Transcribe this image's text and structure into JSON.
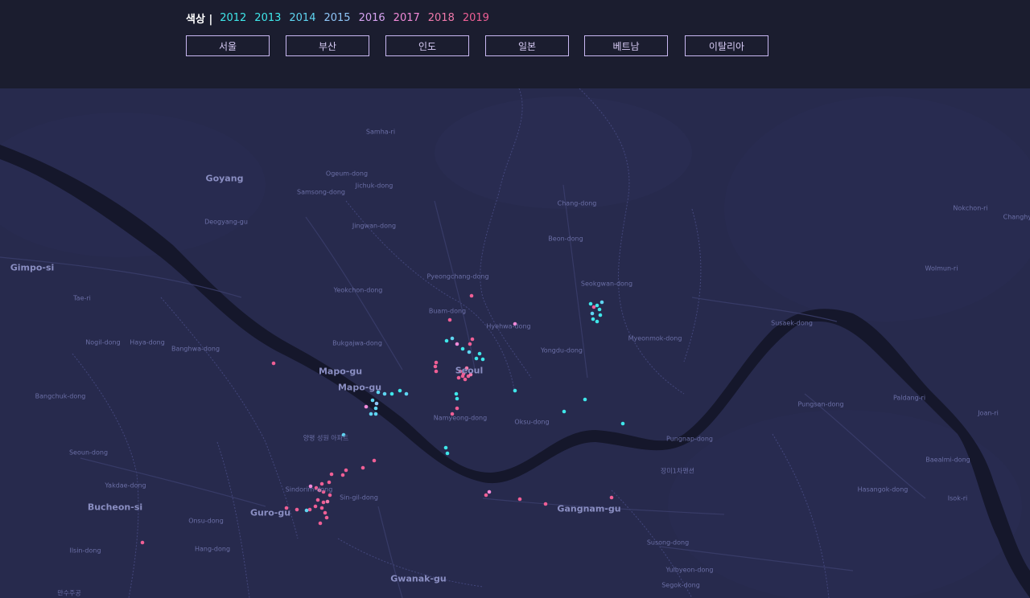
{
  "legend": {
    "title": "색상 |",
    "years": [
      {
        "label": "2012",
        "color": "#3fe7ea"
      },
      {
        "label": "2013",
        "color": "#3fe7ea"
      },
      {
        "label": "2014",
        "color": "#5fd6f2"
      },
      {
        "label": "2015",
        "color": "#8fc6f8"
      },
      {
        "label": "2016",
        "color": "#d7a4f2"
      },
      {
        "label": "2017",
        "color": "#f38ad9"
      },
      {
        "label": "2018",
        "color": "#f17aac"
      },
      {
        "label": "2019",
        "color": "#ef5f95"
      }
    ]
  },
  "buttons": [
    "서울",
    "부산",
    "인도",
    "일본",
    "베트남",
    "이탈리아"
  ],
  "map": {
    "place_labels": [
      {
        "text": "Goyang",
        "size": "big"
      },
      {
        "text": "Gimpo-si",
        "size": "big"
      },
      {
        "text": "Mapo-gu",
        "size": "big"
      },
      {
        "text": "Mapo-gu",
        "size": "big"
      },
      {
        "text": "Seoul",
        "size": "big"
      },
      {
        "text": "Bucheon-si",
        "size": "big"
      },
      {
        "text": "Guro-gu",
        "size": "big"
      },
      {
        "text": "Gangnam-gu",
        "size": "big"
      },
      {
        "text": "Gwanak-gu",
        "size": "big"
      },
      {
        "text": "Samha-ri",
        "size": "small"
      },
      {
        "text": "Ogeum-dong",
        "size": "small"
      },
      {
        "text": "Samsong-dong",
        "size": "small"
      },
      {
        "text": "Jichuk-dong",
        "size": "small"
      },
      {
        "text": "Deogyang-gu",
        "size": "small"
      },
      {
        "text": "Jingwan-dong",
        "size": "small"
      },
      {
        "text": "Chang-dong",
        "size": "small"
      },
      {
        "text": "Beon-dong",
        "size": "small"
      },
      {
        "text": "Nokchon-ri",
        "size": "small"
      },
      {
        "text": "Changhyeon-ri",
        "size": "small"
      },
      {
        "text": "Wolmun-ri",
        "size": "small"
      },
      {
        "text": "Pyeongchang-dong",
        "size": "small"
      },
      {
        "text": "Seokgwan-dong",
        "size": "small"
      },
      {
        "text": "Yeokchon-dong",
        "size": "small"
      },
      {
        "text": "Buam-dong",
        "size": "small"
      },
      {
        "text": "Hyehwa-dong",
        "size": "small"
      },
      {
        "text": "Myeonmok-dong",
        "size": "small"
      },
      {
        "text": "Susaek-dong",
        "size": "small"
      },
      {
        "text": "Tae-ri",
        "size": "small"
      },
      {
        "text": "Nogil-dong",
        "size": "small"
      },
      {
        "text": "Haya-dong",
        "size": "small"
      },
      {
        "text": "Banghwa-dong",
        "size": "small"
      },
      {
        "text": "Bukgajwa-dong",
        "size": "small"
      },
      {
        "text": "Yongdu-dong",
        "size": "small"
      },
      {
        "text": "Bangchuk-dong",
        "size": "small"
      },
      {
        "text": "Namyeong-dong",
        "size": "small"
      },
      {
        "text": "Oksu-dong",
        "size": "small"
      },
      {
        "text": "Pungsan-dong",
        "size": "small"
      },
      {
        "text": "Paldang-ri",
        "size": "small"
      },
      {
        "text": "Joan-ri",
        "size": "small"
      },
      {
        "text": "양평 성원 아파트",
        "size": "small"
      },
      {
        "text": "Pungnap-dong",
        "size": "small"
      },
      {
        "text": "Seoun-dong",
        "size": "small"
      },
      {
        "text": "장미1차맨션",
        "size": "small"
      },
      {
        "text": "Baealmi-dong",
        "size": "small"
      },
      {
        "text": "Yakdae-dong",
        "size": "small"
      },
      {
        "text": "Sindorim-dong",
        "size": "small"
      },
      {
        "text": "Sin-gil-dong",
        "size": "small"
      },
      {
        "text": "Hasangok-dong",
        "size": "small"
      },
      {
        "text": "Isok-ri",
        "size": "small"
      },
      {
        "text": "Onsu-dong",
        "size": "small"
      },
      {
        "text": "Hang-dong",
        "size": "small"
      },
      {
        "text": "Susong-dong",
        "size": "small"
      },
      {
        "text": "Ilsin-dong",
        "size": "small"
      },
      {
        "text": "Yulbyeon-dong",
        "size": "small"
      },
      {
        "text": "Segok-dong",
        "size": "small"
      },
      {
        "text": "만수주공",
        "size": "small"
      }
    ]
  }
}
